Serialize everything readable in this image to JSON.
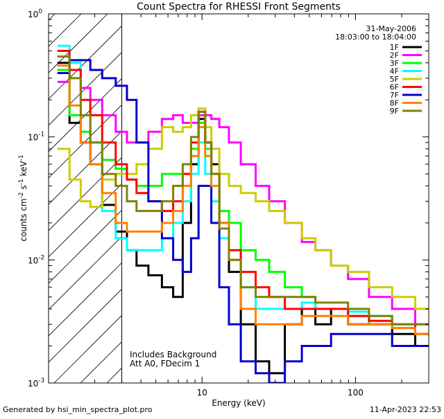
{
  "footer": {
    "generated": "Generated by hsi_min_spectra_plot.pro",
    "timestamp": "11-Apr-2023 22:53"
  },
  "chart_data": {
    "type": "line",
    "title": "Count Spectra for RHESSI Front Segments",
    "xlabel": "Energy (keV)",
    "ylabel": "counts cm-2 s-1 keV-1",
    "xscale": "log",
    "yscale": "log",
    "xlim": [
      1.0,
      300.0
    ],
    "ylim": [
      0.001,
      1.0
    ],
    "x_ticks": [
      {
        "value": 10,
        "label": "10"
      },
      {
        "value": 100,
        "label": "100"
      }
    ],
    "y_ticks": [
      {
        "value": 1.0,
        "base": "10",
        "exp": "0"
      },
      {
        "value": 0.1,
        "base": "10",
        "exp": "-1"
      },
      {
        "value": 0.01,
        "base": "10",
        "exp": "-2"
      },
      {
        "value": 0.001,
        "base": "10",
        "exp": "-3"
      }
    ],
    "date": "31-May-2006",
    "time_range": "18:03:00 to 18:04:00",
    "annotations": [
      "Includes Background",
      "Att A0, FDecim 1"
    ],
    "hatched_region_kev": [
      1.0,
      3.0
    ],
    "x": [
      1.25,
      1.5,
      1.75,
      2.0,
      2.5,
      3.0,
      3.5,
      4.0,
      5.0,
      6.0,
      7.0,
      8.0,
      9.0,
      10.0,
      11.0,
      12.0,
      14.0,
      16.0,
      20.0,
      25.0,
      30.0,
      40.0,
      50.0,
      60.0,
      80.0,
      100.0,
      150.0,
      200.0,
      300.0
    ],
    "series": [
      {
        "name": "1F",
        "color": "#000000",
        "values": [
          0.4,
          0.13,
          0.09,
          0.06,
          0.028,
          0.017,
          0.012,
          0.009,
          0.0075,
          0.006,
          0.005,
          0.02,
          0.06,
          0.14,
          0.09,
          0.06,
          0.02,
          0.008,
          0.003,
          0.0015,
          0.0012,
          0.003,
          0.004,
          0.003,
          0.004,
          0.003,
          0.003,
          0.0025,
          0.002
        ]
      },
      {
        "name": "2F",
        "color": "#ff00ff",
        "values": [
          0.28,
          0.35,
          0.25,
          0.2,
          0.15,
          0.11,
          0.09,
          0.09,
          0.11,
          0.14,
          0.15,
          0.13,
          0.13,
          0.15,
          0.15,
          0.14,
          0.12,
          0.09,
          0.06,
          0.04,
          0.03,
          0.02,
          0.014,
          0.012,
          0.009,
          0.007,
          0.005,
          0.004,
          0.003
        ]
      },
      {
        "name": "3F",
        "color": "#00ff00",
        "values": [
          0.35,
          0.15,
          0.11,
          0.09,
          0.065,
          0.055,
          0.045,
          0.04,
          0.04,
          0.05,
          0.05,
          0.05,
          0.08,
          0.13,
          0.08,
          0.05,
          0.025,
          0.02,
          0.012,
          0.01,
          0.008,
          0.006,
          0.005,
          0.004,
          0.004,
          0.0035,
          0.003,
          0.0028,
          0.0025
        ]
      },
      {
        "name": "4F",
        "color": "#00ffff",
        "values": [
          0.55,
          0.4,
          0.2,
          0.06,
          0.025,
          0.015,
          0.012,
          0.012,
          0.012,
          0.015,
          0.02,
          0.03,
          0.05,
          0.09,
          0.05,
          0.03,
          0.015,
          0.01,
          0.006,
          0.004,
          0.004,
          0.004,
          0.0045,
          0.004,
          0.004,
          0.0038,
          0.0035,
          0.003,
          0.003
        ]
      },
      {
        "name": "5F",
        "color": "#cccc00",
        "values": [
          0.08,
          0.045,
          0.03,
          0.027,
          0.045,
          0.05,
          0.05,
          0.06,
          0.08,
          0.12,
          0.11,
          0.12,
          0.15,
          0.17,
          0.12,
          0.08,
          0.05,
          0.04,
          0.035,
          0.03,
          0.025,
          0.02,
          0.015,
          0.012,
          0.009,
          0.008,
          0.006,
          0.005,
          0.004
        ]
      },
      {
        "name": "6F",
        "color": "#ff0000",
        "values": [
          0.5,
          0.35,
          0.2,
          0.15,
          0.09,
          0.06,
          0.045,
          0.035,
          0.03,
          0.025,
          0.03,
          0.05,
          0.09,
          0.16,
          0.09,
          0.05,
          0.02,
          0.012,
          0.008,
          0.006,
          0.005,
          0.004,
          0.004,
          0.004,
          0.004,
          0.0035,
          0.0032,
          0.003,
          0.0025
        ]
      },
      {
        "name": "7F",
        "color": "#0000cc",
        "values": [
          0.33,
          0.42,
          0.42,
          0.35,
          0.3,
          0.26,
          0.2,
          0.09,
          0.03,
          0.015,
          0.01,
          0.008,
          0.015,
          0.04,
          0.04,
          0.02,
          0.006,
          0.003,
          0.0015,
          0.0012,
          0.001,
          0.0015,
          0.002,
          0.002,
          0.0025,
          0.0025,
          0.0025,
          0.002,
          0.002
        ]
      },
      {
        "name": "8F",
        "color": "#ff8000",
        "values": [
          0.38,
          0.18,
          0.09,
          0.06,
          0.035,
          0.02,
          0.017,
          0.017,
          0.017,
          0.02,
          0.025,
          0.04,
          0.07,
          0.12,
          0.07,
          0.04,
          0.02,
          0.01,
          0.004,
          0.003,
          0.003,
          0.003,
          0.0035,
          0.0035,
          0.0035,
          0.003,
          0.003,
          0.0028,
          0.0025
        ]
      },
      {
        "name": "9F",
        "color": "#808000",
        "values": [
          0.45,
          0.3,
          0.15,
          0.09,
          0.05,
          0.04,
          0.03,
          0.025,
          0.025,
          0.03,
          0.04,
          0.06,
          0.1,
          0.16,
          0.09,
          0.05,
          0.018,
          0.01,
          0.006,
          0.005,
          0.005,
          0.005,
          0.005,
          0.0045,
          0.0045,
          0.004,
          0.0035,
          0.003,
          0.003
        ]
      }
    ]
  }
}
